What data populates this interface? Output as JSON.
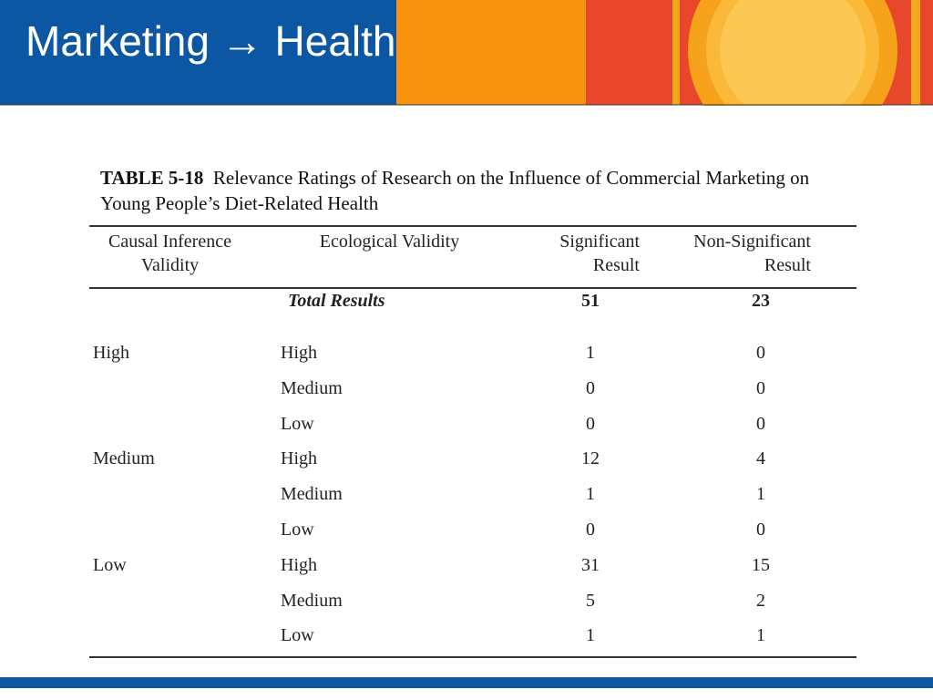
{
  "header": {
    "title": "Marketing → Health"
  },
  "table": {
    "label": "TABLE 5-18",
    "caption": "Relevance Ratings of Research on the Influence of Commercial Marketing on Young People’s Diet-Related Health",
    "columns": [
      "Causal Inference Validity",
      "Ecological Validity",
      "Significant Result",
      "Non-Significant Result"
    ],
    "total": {
      "label": "Total Results",
      "significant": 51,
      "non_significant": 23
    },
    "rows": [
      [
        "High",
        "High",
        1,
        0
      ],
      [
        null,
        "Medium",
        0,
        0
      ],
      [
        null,
        "Low",
        0,
        0
      ],
      [
        "Medium",
        "High",
        12,
        4
      ],
      [
        null,
        "Medium",
        1,
        1
      ],
      [
        null,
        "Low",
        0,
        0
      ],
      [
        "Low",
        "High",
        31,
        15
      ],
      [
        null,
        "Medium",
        5,
        2
      ],
      [
        null,
        "Low",
        1,
        1
      ]
    ]
  }
}
